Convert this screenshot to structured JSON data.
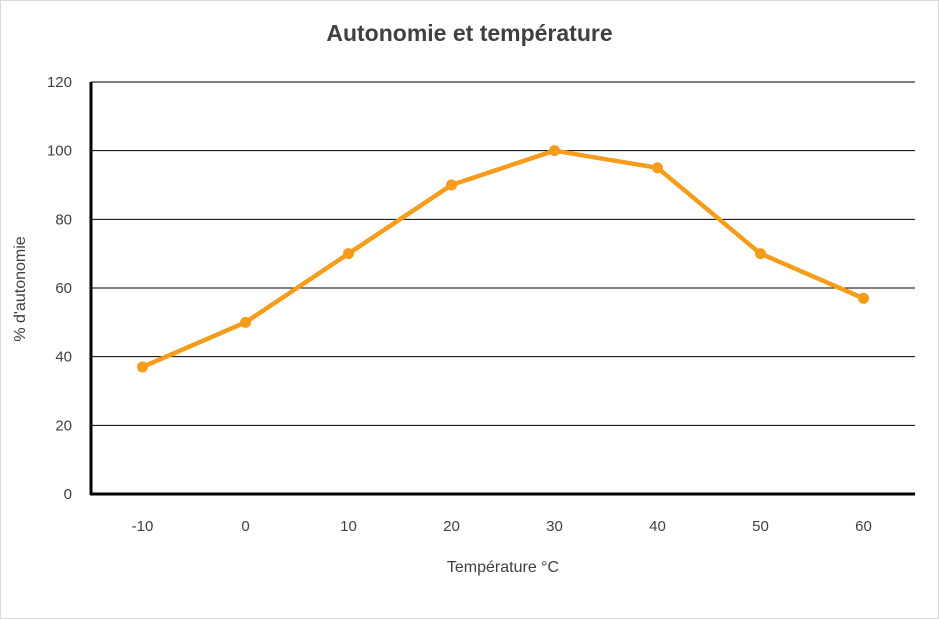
{
  "chart_data": {
    "type": "line",
    "title": "Autonomie et température",
    "xlabel": "Température °C",
    "ylabel": "% d'autonomie",
    "categories": [
      "-10",
      "0",
      "10",
      "20",
      "30",
      "40",
      "50",
      "60"
    ],
    "series": [
      {
        "values": [
          37,
          50,
          70,
          90,
          100,
          95,
          70,
          57
        ],
        "color": "#f59c1a"
      }
    ],
    "ylim": [
      0,
      120
    ],
    "yticks": [
      "0",
      "20",
      "40",
      "60",
      "80",
      "100",
      "120"
    ],
    "grid": true,
    "legend": "none",
    "colors": {
      "line": "#f59c1a",
      "grid": "#000000",
      "text": "#404040"
    }
  }
}
